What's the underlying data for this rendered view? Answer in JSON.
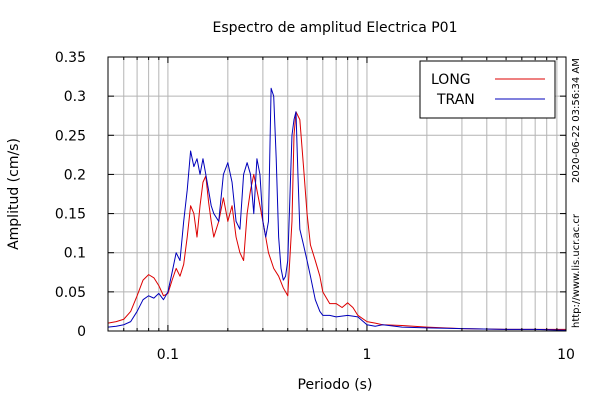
{
  "chart_data": {
    "type": "line",
    "title": "Espectro de amplitud Electrica P01",
    "xlabel": "Periodo (s)",
    "ylabel": "Amplitud (cm/s)",
    "xscale": "log",
    "xlim": [
      0.05,
      10
    ],
    "ylim": [
      0,
      0.35
    ],
    "grid": true,
    "legend_position": "top-right",
    "xticks": [
      {
        "value": 0.1,
        "label": "0.1"
      },
      {
        "value": 1,
        "label": "1"
      },
      {
        "value": 10,
        "label": "10"
      }
    ],
    "yticks": [
      {
        "value": 0,
        "label": "0"
      },
      {
        "value": 0.05,
        "label": "0.05"
      },
      {
        "value": 0.1,
        "label": "0.1"
      },
      {
        "value": 0.15,
        "label": "0.15"
      },
      {
        "value": 0.2,
        "label": "0.2"
      },
      {
        "value": 0.25,
        "label": "0.25"
      },
      {
        "value": 0.3,
        "label": "0.3"
      },
      {
        "value": 0.35,
        "label": "0.35"
      }
    ],
    "series": [
      {
        "name": "LONG",
        "color": "#dd0000",
        "points": [
          [
            0.05,
            0.01
          ],
          [
            0.055,
            0.012
          ],
          [
            0.06,
            0.015
          ],
          [
            0.065,
            0.025
          ],
          [
            0.07,
            0.045
          ],
          [
            0.075,
            0.065
          ],
          [
            0.08,
            0.072
          ],
          [
            0.085,
            0.068
          ],
          [
            0.09,
            0.058
          ],
          [
            0.095,
            0.045
          ],
          [
            0.1,
            0.048
          ],
          [
            0.105,
            0.065
          ],
          [
            0.11,
            0.08
          ],
          [
            0.115,
            0.07
          ],
          [
            0.12,
            0.085
          ],
          [
            0.125,
            0.12
          ],
          [
            0.13,
            0.16
          ],
          [
            0.135,
            0.15
          ],
          [
            0.14,
            0.12
          ],
          [
            0.145,
            0.16
          ],
          [
            0.15,
            0.19
          ],
          [
            0.155,
            0.198
          ],
          [
            0.16,
            0.165
          ],
          [
            0.165,
            0.14
          ],
          [
            0.17,
            0.12
          ],
          [
            0.18,
            0.14
          ],
          [
            0.19,
            0.17
          ],
          [
            0.2,
            0.14
          ],
          [
            0.21,
            0.16
          ],
          [
            0.22,
            0.12
          ],
          [
            0.23,
            0.1
          ],
          [
            0.24,
            0.09
          ],
          [
            0.25,
            0.15
          ],
          [
            0.26,
            0.18
          ],
          [
            0.27,
            0.2
          ],
          [
            0.28,
            0.18
          ],
          [
            0.29,
            0.16
          ],
          [
            0.3,
            0.14
          ],
          [
            0.31,
            0.12
          ],
          [
            0.32,
            0.1
          ],
          [
            0.33,
            0.09
          ],
          [
            0.34,
            0.08
          ],
          [
            0.36,
            0.07
          ],
          [
            0.38,
            0.055
          ],
          [
            0.4,
            0.045
          ],
          [
            0.42,
            0.14
          ],
          [
            0.43,
            0.25
          ],
          [
            0.44,
            0.28
          ],
          [
            0.46,
            0.27
          ],
          [
            0.48,
            0.21
          ],
          [
            0.5,
            0.15
          ],
          [
            0.52,
            0.11
          ],
          [
            0.55,
            0.09
          ],
          [
            0.58,
            0.07
          ],
          [
            0.6,
            0.05
          ],
          [
            0.65,
            0.035
          ],
          [
            0.7,
            0.035
          ],
          [
            0.75,
            0.03
          ],
          [
            0.8,
            0.036
          ],
          [
            0.85,
            0.03
          ],
          [
            0.9,
            0.02
          ],
          [
            1.0,
            0.012
          ],
          [
            1.1,
            0.01
          ],
          [
            1.2,
            0.008
          ],
          [
            1.5,
            0.007
          ],
          [
            2.0,
            0.005
          ],
          [
            3.0,
            0.003
          ],
          [
            5.0,
            0.002
          ],
          [
            7.0,
            0.002
          ],
          [
            10.0,
            0.002
          ]
        ]
      },
      {
        "name": "TRAN",
        "color": "#0000bb",
        "points": [
          [
            0.05,
            0.005
          ],
          [
            0.055,
            0.006
          ],
          [
            0.06,
            0.008
          ],
          [
            0.065,
            0.012
          ],
          [
            0.07,
            0.025
          ],
          [
            0.075,
            0.04
          ],
          [
            0.08,
            0.045
          ],
          [
            0.085,
            0.042
          ],
          [
            0.09,
            0.048
          ],
          [
            0.095,
            0.04
          ],
          [
            0.1,
            0.05
          ],
          [
            0.105,
            0.075
          ],
          [
            0.11,
            0.1
          ],
          [
            0.115,
            0.09
          ],
          [
            0.12,
            0.14
          ],
          [
            0.125,
            0.18
          ],
          [
            0.13,
            0.23
          ],
          [
            0.135,
            0.21
          ],
          [
            0.14,
            0.22
          ],
          [
            0.145,
            0.2
          ],
          [
            0.15,
            0.22
          ],
          [
            0.155,
            0.2
          ],
          [
            0.16,
            0.18
          ],
          [
            0.165,
            0.16
          ],
          [
            0.17,
            0.15
          ],
          [
            0.18,
            0.14
          ],
          [
            0.19,
            0.2
          ],
          [
            0.2,
            0.215
          ],
          [
            0.21,
            0.19
          ],
          [
            0.22,
            0.14
          ],
          [
            0.23,
            0.13
          ],
          [
            0.24,
            0.2
          ],
          [
            0.25,
            0.215
          ],
          [
            0.26,
            0.2
          ],
          [
            0.27,
            0.15
          ],
          [
            0.28,
            0.22
          ],
          [
            0.29,
            0.2
          ],
          [
            0.3,
            0.14
          ],
          [
            0.31,
            0.12
          ],
          [
            0.32,
            0.14
          ],
          [
            0.33,
            0.31
          ],
          [
            0.34,
            0.3
          ],
          [
            0.35,
            0.22
          ],
          [
            0.36,
            0.12
          ],
          [
            0.37,
            0.08
          ],
          [
            0.38,
            0.065
          ],
          [
            0.39,
            0.07
          ],
          [
            0.4,
            0.09
          ],
          [
            0.41,
            0.17
          ],
          [
            0.42,
            0.25
          ],
          [
            0.43,
            0.27
          ],
          [
            0.44,
            0.28
          ],
          [
            0.45,
            0.2
          ],
          [
            0.46,
            0.13
          ],
          [
            0.48,
            0.11
          ],
          [
            0.5,
            0.09
          ],
          [
            0.52,
            0.07
          ],
          [
            0.55,
            0.04
          ],
          [
            0.58,
            0.025
          ],
          [
            0.6,
            0.02
          ],
          [
            0.65,
            0.02
          ],
          [
            0.7,
            0.018
          ],
          [
            0.8,
            0.02
          ],
          [
            0.9,
            0.018
          ],
          [
            1.0,
            0.008
          ],
          [
            1.1,
            0.006
          ],
          [
            1.2,
            0.008
          ],
          [
            1.5,
            0.005
          ],
          [
            2.0,
            0.004
          ],
          [
            3.0,
            0.003
          ],
          [
            5.0,
            0.002
          ],
          [
            7.0,
            0.002
          ],
          [
            10.0,
            0.001
          ]
        ]
      }
    ]
  },
  "side_texts": {
    "timestamp": "2020-06-22 03:56:34 AM",
    "url": "http://www.lis.ucr.ac.cr"
  }
}
